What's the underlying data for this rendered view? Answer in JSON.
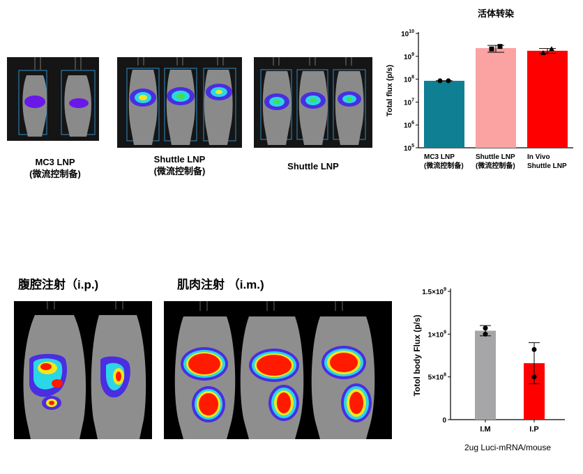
{
  "top_section": {
    "captions": [
      {
        "line1": "MC3 LNP",
        "line2": "(微流控制备)"
      },
      {
        "line1": "Shuttle LNP",
        "line2": "(微流控制备)"
      },
      {
        "line1": "Shuttle LNP",
        "line2": ""
      }
    ]
  },
  "bottom_section": {
    "headings": [
      "腹腔注射（i.p.)",
      "肌肉注射 （i.m.)"
    ]
  },
  "chart_data": [
    {
      "type": "bar",
      "title": "活体转染",
      "ylabel": "Total flux (p/s)",
      "xlabel": "",
      "yscale": "log",
      "ylim": [
        100000,
        10000000000
      ],
      "ytick_labels": [
        "10^5",
        "10^6",
        "10^7",
        "10^8",
        "10^9",
        "10^10"
      ],
      "categories": [
        {
          "line1": "MC3 LNP",
          "line2": "(微流控制备)"
        },
        {
          "line1": "Shuttle LNP",
          "line2": "(微流控制备)"
        },
        {
          "line1": "In Vivo",
          "line2": "Shuttle LNP"
        }
      ],
      "values": [
        85000000,
        2300000000,
        1750000000
      ],
      "err_low": [
        85000000,
        1500000000,
        1350000000
      ],
      "err_high": [
        85000000,
        3000000000,
        2200000000
      ],
      "points": [
        [
          85000000,
          85000000
        ],
        [
          2100000000,
          2700000000
        ],
        [
          1400000000,
          2100000000
        ]
      ],
      "markers": [
        "circle",
        "square",
        "triangle"
      ],
      "colors": [
        "#0f7f94",
        "#fba3a3",
        "#ff0000"
      ]
    },
    {
      "type": "bar",
      "title": "",
      "ylabel": "Totol body Flux (p/s)",
      "xlabel": "2ug Luci-mRNA/mouse",
      "ylim": [
        0,
        1500000000
      ],
      "ytick_labels": [
        "0",
        "5×10^8",
        "1×10^9",
        "1.5×10^9"
      ],
      "yticks": [
        0,
        500000000,
        1000000000,
        1500000000
      ],
      "categories": [
        "I.M",
        "I.P"
      ],
      "values": [
        1040000000,
        660000000
      ],
      "err_low": [
        980000000,
        420000000
      ],
      "err_high": [
        1100000000,
        900000000
      ],
      "points": [
        [
          1070000000,
          1000000000
        ],
        [
          820000000,
          500000000
        ]
      ],
      "colors": [
        "#a6a6a8",
        "#ff0000"
      ]
    }
  ]
}
